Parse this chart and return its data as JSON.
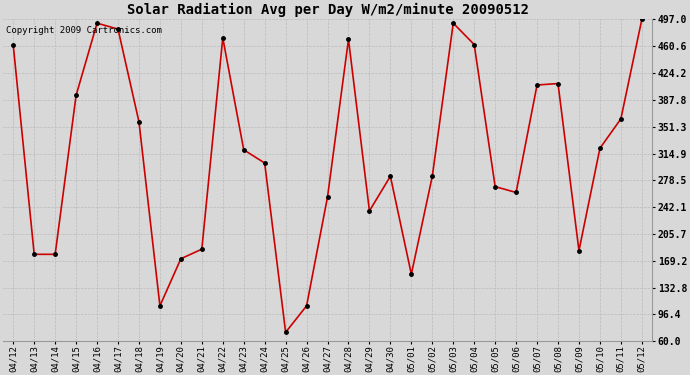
{
  "title": "Solar Radiation Avg per Day W/m2/minute 20090512",
  "copyright": "Copyright 2009 Cartronics.com",
  "labels": [
    "04/12",
    "04/13",
    "04/14",
    "04/15",
    "04/16",
    "04/17",
    "04/18",
    "04/19",
    "04/20",
    "04/21",
    "04/22",
    "04/23",
    "04/24",
    "04/25",
    "04/26",
    "04/27",
    "04/28",
    "04/29",
    "04/30",
    "05/01",
    "05/02",
    "05/03",
    "05/04",
    "05/05",
    "05/06",
    "05/07",
    "05/08",
    "05/09",
    "05/10",
    "05/11",
    "05/12"
  ],
  "values": [
    462,
    178,
    178,
    394,
    492,
    484,
    358,
    108,
    172,
    185,
    472,
    320,
    302,
    72,
    108,
    256,
    470,
    237,
    284,
    151,
    284,
    492,
    463,
    270,
    262,
    408,
    410,
    183,
    322,
    362,
    497
  ],
  "line_color": "#cc0000",
  "marker_color": "#000000",
  "bg_color": "#d8d8d8",
  "grid_color": "#bbbbbb",
  "ylim": [
    60.0,
    497.0
  ],
  "yticks": [
    60.0,
    96.4,
    132.8,
    169.2,
    205.7,
    242.1,
    278.5,
    314.9,
    351.3,
    387.8,
    424.2,
    460.6,
    497.0
  ],
  "ytick_labels": [
    "60.0",
    "96.4",
    "132.8",
    "169.2",
    "205.7",
    "242.1",
    "278.5",
    "314.9",
    "351.3",
    "387.8",
    "424.2",
    "460.6",
    "497.0"
  ],
  "title_fontsize": 10,
  "copyright_fontsize": 6.5,
  "tick_fontsize": 6.5,
  "ytick_fontsize": 7
}
